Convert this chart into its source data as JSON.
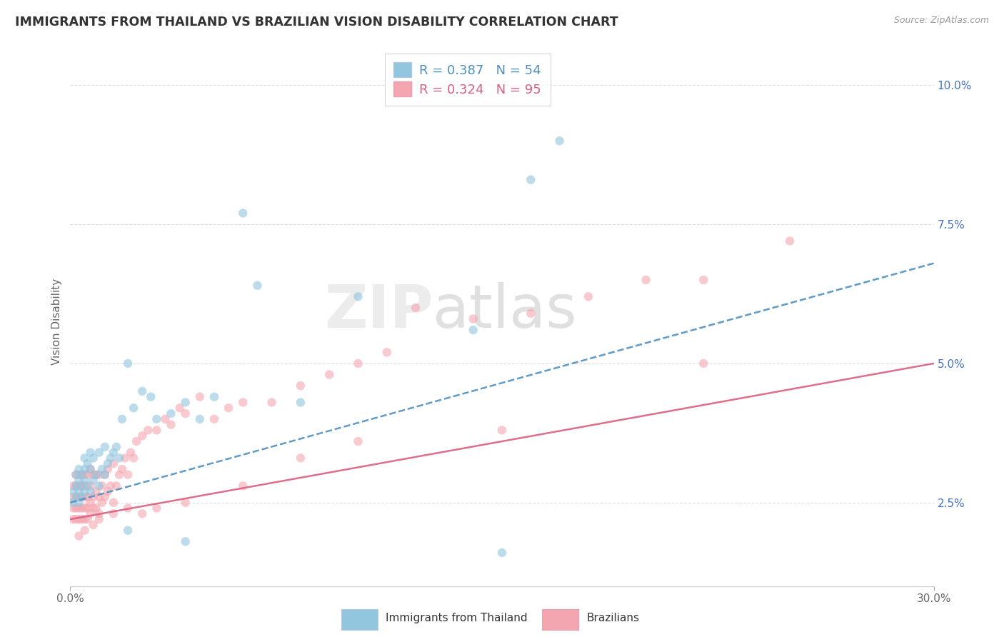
{
  "title": "IMMIGRANTS FROM THAILAND VS BRAZILIAN VISION DISABILITY CORRELATION CHART",
  "source": "Source: ZipAtlas.com",
  "ylabel_label": "Vision Disability",
  "ylabel_ticks": [
    0.025,
    0.05,
    0.075,
    0.1
  ],
  "ylabel_labels": [
    "2.5%",
    "5.0%",
    "7.5%",
    "10.0%"
  ],
  "xlim": [
    0.0,
    0.3
  ],
  "ylim": [
    0.01,
    0.105
  ],
  "legend_label1": "Immigrants from Thailand",
  "legend_label2": "Brazilians",
  "R1": 0.387,
  "N1": 54,
  "R2": 0.324,
  "N2": 95,
  "color_thailand": "#92c5de",
  "color_brazil": "#f4a6b0",
  "color_trend_thailand": "#4f8fc0",
  "color_trend_brazil": "#d96080",
  "background_color": "#ffffff",
  "watermark": "ZIPatlas",
  "trend_thailand": [
    0.0,
    0.025,
    0.3,
    0.068
  ],
  "trend_brazil": [
    0.0,
    0.022,
    0.3,
    0.05
  ],
  "thailand_x": [
    0.001,
    0.001,
    0.002,
    0.002,
    0.002,
    0.003,
    0.003,
    0.003,
    0.003,
    0.004,
    0.004,
    0.004,
    0.005,
    0.005,
    0.005,
    0.005,
    0.006,
    0.006,
    0.007,
    0.007,
    0.007,
    0.008,
    0.008,
    0.009,
    0.01,
    0.01,
    0.011,
    0.012,
    0.012,
    0.013,
    0.014,
    0.015,
    0.016,
    0.017,
    0.018,
    0.02,
    0.022,
    0.025,
    0.028,
    0.03,
    0.035,
    0.04,
    0.045,
    0.05,
    0.06,
    0.065,
    0.08,
    0.1,
    0.14,
    0.16,
    0.02,
    0.04,
    0.15,
    0.17
  ],
  "thailand_y": [
    0.025,
    0.027,
    0.026,
    0.028,
    0.03,
    0.025,
    0.027,
    0.029,
    0.031,
    0.026,
    0.028,
    0.03,
    0.027,
    0.029,
    0.031,
    0.033,
    0.028,
    0.032,
    0.027,
    0.031,
    0.034,
    0.029,
    0.033,
    0.03,
    0.028,
    0.034,
    0.031,
    0.03,
    0.035,
    0.032,
    0.033,
    0.034,
    0.035,
    0.033,
    0.04,
    0.05,
    0.042,
    0.045,
    0.044,
    0.04,
    0.041,
    0.043,
    0.04,
    0.044,
    0.077,
    0.064,
    0.043,
    0.062,
    0.056,
    0.083,
    0.02,
    0.018,
    0.016,
    0.09
  ],
  "brazil_x": [
    0.001,
    0.001,
    0.001,
    0.001,
    0.002,
    0.002,
    0.002,
    0.002,
    0.002,
    0.003,
    0.003,
    0.003,
    0.003,
    0.003,
    0.004,
    0.004,
    0.004,
    0.004,
    0.004,
    0.005,
    0.005,
    0.005,
    0.005,
    0.005,
    0.006,
    0.006,
    0.006,
    0.006,
    0.007,
    0.007,
    0.007,
    0.007,
    0.008,
    0.008,
    0.008,
    0.009,
    0.009,
    0.009,
    0.01,
    0.01,
    0.01,
    0.011,
    0.011,
    0.012,
    0.012,
    0.013,
    0.013,
    0.014,
    0.015,
    0.015,
    0.016,
    0.017,
    0.018,
    0.019,
    0.02,
    0.021,
    0.022,
    0.023,
    0.025,
    0.027,
    0.03,
    0.033,
    0.035,
    0.038,
    0.04,
    0.045,
    0.05,
    0.055,
    0.06,
    0.07,
    0.08,
    0.09,
    0.1,
    0.11,
    0.12,
    0.14,
    0.16,
    0.18,
    0.2,
    0.22,
    0.25,
    0.003,
    0.005,
    0.008,
    0.01,
    0.015,
    0.02,
    0.025,
    0.03,
    0.04,
    0.06,
    0.08,
    0.1,
    0.15,
    0.22
  ],
  "brazil_y": [
    0.022,
    0.024,
    0.026,
    0.028,
    0.022,
    0.024,
    0.026,
    0.028,
    0.03,
    0.022,
    0.024,
    0.026,
    0.028,
    0.03,
    0.022,
    0.024,
    0.026,
    0.028,
    0.03,
    0.022,
    0.024,
    0.026,
    0.028,
    0.03,
    0.022,
    0.024,
    0.026,
    0.03,
    0.023,
    0.025,
    0.028,
    0.031,
    0.024,
    0.026,
    0.03,
    0.024,
    0.027,
    0.03,
    0.023,
    0.026,
    0.03,
    0.025,
    0.028,
    0.026,
    0.03,
    0.027,
    0.031,
    0.028,
    0.025,
    0.032,
    0.028,
    0.03,
    0.031,
    0.033,
    0.03,
    0.034,
    0.033,
    0.036,
    0.037,
    0.038,
    0.038,
    0.04,
    0.039,
    0.042,
    0.041,
    0.044,
    0.04,
    0.042,
    0.043,
    0.043,
    0.046,
    0.048,
    0.05,
    0.052,
    0.06,
    0.058,
    0.059,
    0.062,
    0.065,
    0.065,
    0.072,
    0.019,
    0.02,
    0.021,
    0.022,
    0.023,
    0.024,
    0.023,
    0.024,
    0.025,
    0.028,
    0.033,
    0.036,
    0.038,
    0.05
  ]
}
